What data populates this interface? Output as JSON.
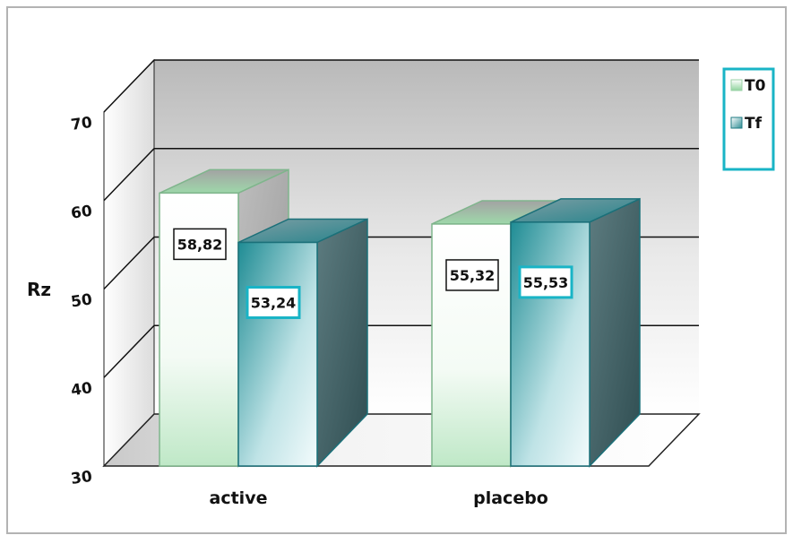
{
  "chart_data": {
    "type": "bar",
    "categories": [
      "active",
      "placebo"
    ],
    "series": [
      {
        "name": "T0",
        "values": [
          58.82,
          55.32
        ],
        "labels": [
          "58,82",
          "55,32"
        ],
        "color": "#8fd49e"
      },
      {
        "name": "Tf",
        "values": [
          53.24,
          55.53
        ],
        "labels": [
          "53,24",
          "55,53"
        ],
        "color": "#2e8d94"
      }
    ],
    "title": "",
    "xlabel": "",
    "ylabel": "Rz",
    "ylim": [
      30,
      70
    ],
    "yticks": [
      "30",
      "40",
      "50",
      "60",
      "70"
    ],
    "grid": true,
    "legend": "top-right",
    "style": "3d"
  },
  "colors": {
    "frame": "#b3b3b3",
    "wall": "#c8c8c8",
    "legend_border": "#19b4c6",
    "tf_label_border": "#19b4c6",
    "t0_label_border": "#111111"
  }
}
